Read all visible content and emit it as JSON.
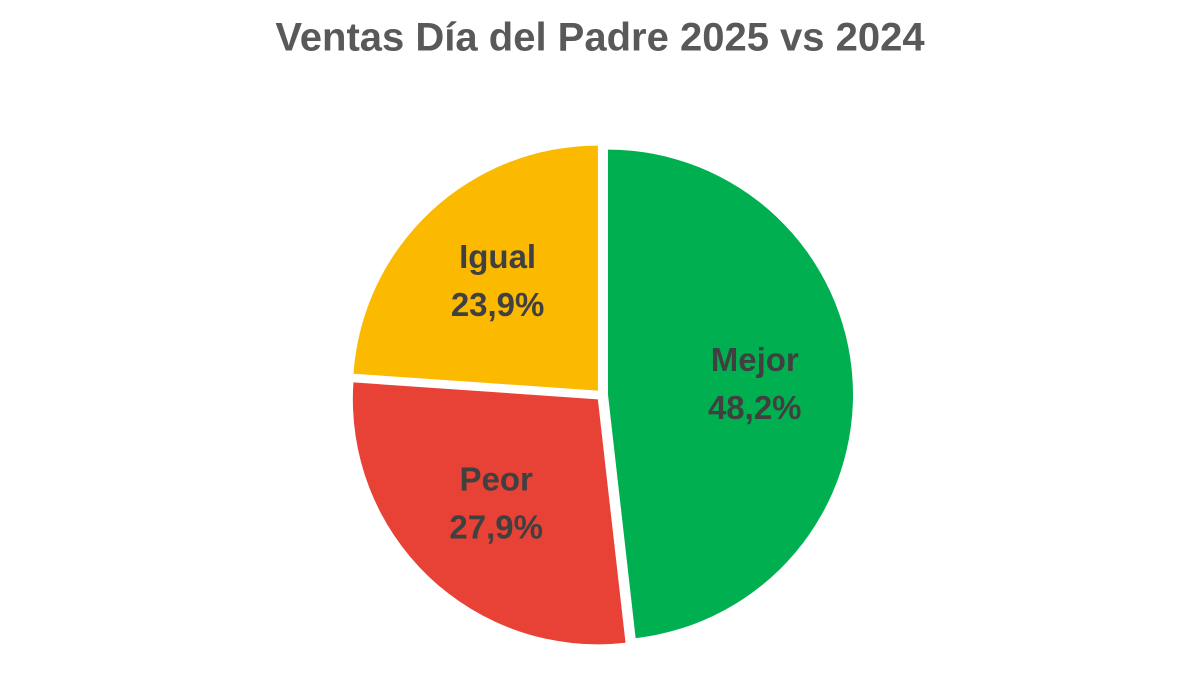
{
  "chart_data": {
    "type": "pie",
    "title": "Ventas Día del Padre 2025 vs 2024",
    "categories": [
      "Mejor",
      "Peor",
      "Igual"
    ],
    "values": [
      48.2,
      27.9,
      23.9
    ],
    "value_labels": [
      "48,2%",
      "27,9%",
      "23,9%"
    ],
    "colors": [
      "#00b050",
      "#e84135",
      "#fbb900"
    ]
  }
}
